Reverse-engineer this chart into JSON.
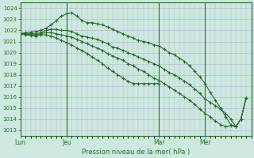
{
  "bg_color": "#cce8df",
  "grid_color": "#b0b8cc",
  "line_color": "#2d6a2d",
  "title": "Pression niveau de la mer( hPa )",
  "ylim": [
    1012.5,
    1024.5
  ],
  "yticks": [
    1013,
    1014,
    1015,
    1016,
    1017,
    1018,
    1019,
    1020,
    1021,
    1022,
    1023,
    1024
  ],
  "day_labels": [
    "Lun",
    "Jeu",
    "Mar",
    "Mer"
  ],
  "day_positions": [
    0,
    9,
    27,
    36
  ],
  "xlim": [
    0,
    45
  ],
  "series1": {
    "x": [
      0,
      1,
      2,
      3,
      4,
      5,
      6,
      7,
      8,
      9,
      10,
      11,
      12,
      13,
      14,
      15,
      16,
      17,
      18,
      19,
      20,
      21,
      22,
      23,
      24,
      25,
      26,
      27,
      28,
      29,
      30,
      31,
      32,
      33,
      34,
      35,
      36,
      37,
      38,
      39,
      40,
      41,
      42,
      43,
      44
    ],
    "y": [
      1021.7,
      1021.8,
      1021.85,
      1021.9,
      1022.0,
      1022.2,
      1022.5,
      1022.9,
      1023.3,
      1023.5,
      1023.6,
      1023.3,
      1022.9,
      1022.7,
      1022.7,
      1022.6,
      1022.5,
      1022.3,
      1022.1,
      1021.9,
      1021.7,
      1021.5,
      1021.3,
      1021.1,
      1021.0,
      1020.9,
      1020.7,
      1020.6,
      1020.3,
      1020.0,
      1019.8,
      1019.5,
      1019.2,
      1018.8,
      1018.3,
      1017.8,
      1017.2,
      1016.4,
      1015.7,
      1015.0,
      1014.2,
      1013.5,
      1013.3,
      1014.0,
      1015.9
    ]
  },
  "series2": {
    "x": [
      0,
      1,
      2,
      3,
      4,
      5,
      6,
      7,
      8,
      9,
      10,
      11,
      12,
      13,
      14,
      15,
      16,
      17,
      18,
      19,
      20,
      21,
      22,
      23,
      24,
      25,
      26,
      27,
      28,
      29,
      30,
      31,
      32,
      33,
      34,
      35,
      36,
      37,
      38,
      39,
      40,
      41,
      42,
      43,
      44
    ],
    "y": [
      1021.7,
      1021.7,
      1021.7,
      1021.7,
      1021.8,
      1022.0,
      1022.1,
      1022.1,
      1022.0,
      1022.0,
      1021.9,
      1021.7,
      1021.5,
      1021.4,
      1021.3,
      1021.2,
      1021.0,
      1020.8,
      1020.5,
      1020.4,
      1020.2,
      1020.0,
      1019.8,
      1019.6,
      1019.4,
      1019.2,
      1019.0,
      1018.8,
      1018.5,
      1018.2,
      1018.0,
      1017.7,
      1017.4,
      1017.1,
      1016.7,
      1016.3,
      1015.8,
      1015.5,
      1015.2,
      1014.9,
      1014.5,
      1014.0,
      1013.3,
      1014.0,
      1015.9
    ]
  },
  "series3": {
    "x": [
      0,
      1,
      2,
      3,
      4,
      5,
      6,
      7,
      8,
      9,
      10,
      11,
      12,
      13,
      14,
      15,
      16,
      17,
      18,
      19,
      20,
      21,
      22,
      23,
      24,
      25,
      26,
      27,
      28,
      29,
      30,
      31,
      32,
      33,
      34,
      35,
      36,
      37,
      38,
      39,
      40,
      41,
      42,
      43,
      44
    ],
    "y": [
      1021.7,
      1021.7,
      1021.6,
      1021.6,
      1021.7,
      1021.8,
      1021.8,
      1021.7,
      1021.6,
      1021.5,
      1021.4,
      1021.2,
      1021.0,
      1020.8,
      1020.6,
      1020.4,
      1020.2,
      1019.9,
      1019.7,
      1019.5,
      1019.3,
      1019.0,
      1018.8,
      1018.5,
      1018.3,
      1018.0,
      1017.7,
      1017.5,
      1017.2,
      1016.9,
      1016.6,
      1016.3,
      1016.0,
      1015.7,
      1015.3,
      1014.9,
      1014.5,
      1014.2,
      1013.8,
      1013.5,
      1013.3,
      1013.4,
      1013.3,
      1014.0,
      1015.9
    ]
  },
  "series4": {
    "x": [
      0,
      1,
      2,
      3,
      4,
      5,
      6,
      7,
      8,
      9,
      10,
      11,
      12,
      13,
      14,
      15,
      16,
      17,
      18,
      19,
      20,
      21,
      22,
      23,
      24,
      25,
      26,
      27
    ],
    "y": [
      1021.7,
      1021.6,
      1021.55,
      1021.5,
      1021.6,
      1021.6,
      1021.5,
      1021.3,
      1021.1,
      1020.9,
      1020.7,
      1020.4,
      1020.2,
      1019.9,
      1019.6,
      1019.3,
      1019.0,
      1018.6,
      1018.3,
      1018.0,
      1017.7,
      1017.4,
      1017.2,
      1017.2,
      1017.2,
      1017.2,
      1017.2,
      1017.2
    ]
  }
}
